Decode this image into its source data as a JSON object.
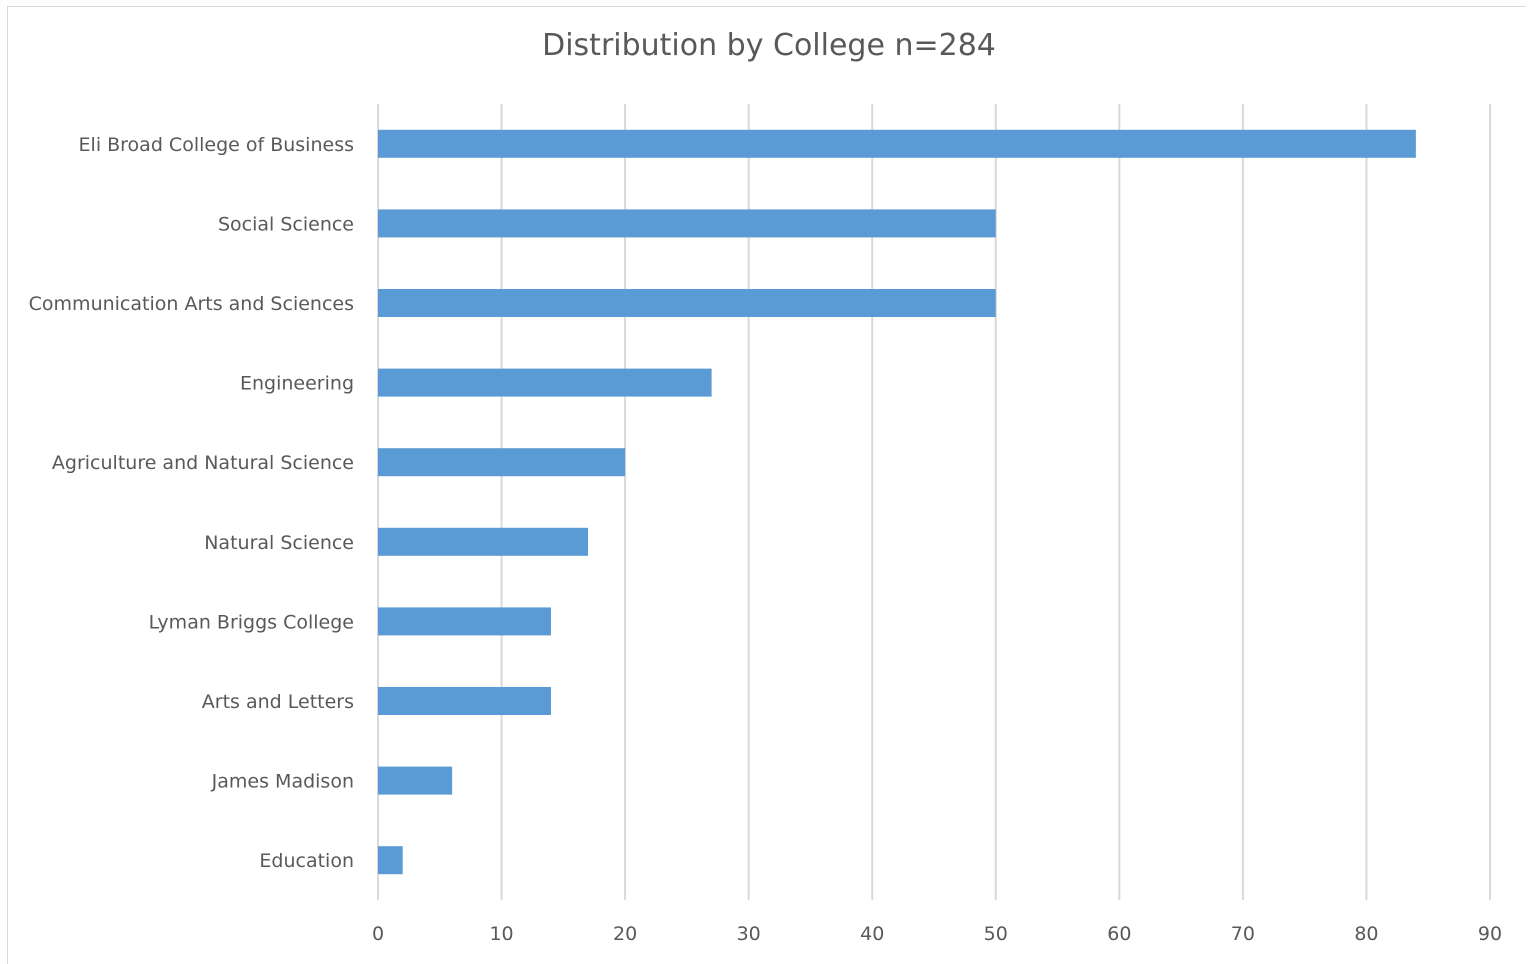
{
  "chart_data": {
    "type": "bar",
    "orientation": "horizontal",
    "title": "Distribution by College n=284",
    "xlabel": "",
    "ylabel": "",
    "xlim": [
      0,
      90
    ],
    "x_ticks": [
      0,
      10,
      20,
      30,
      40,
      50,
      60,
      70,
      80,
      90
    ],
    "grid": true,
    "legend": "none",
    "bar_color": "#5b9bd5",
    "categories": [
      "Eli Broad College of Business",
      "Social Science",
      "Communication Arts and Sciences",
      "Engineering",
      "Agriculture and Natural Science",
      "Natural Science",
      "Lyman Briggs College",
      "Arts and Letters",
      "James Madison",
      "Education"
    ],
    "values": [
      84,
      50,
      50,
      27,
      20,
      17,
      14,
      14,
      6,
      2
    ]
  }
}
